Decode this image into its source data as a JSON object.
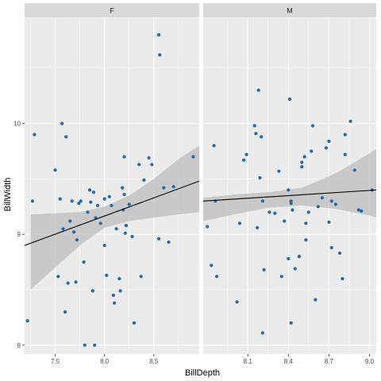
{
  "chart_data": {
    "type": "scatter",
    "facet_variable": "sex",
    "xlabel": "BillDepth",
    "ylabel": "BillWidth",
    "ylim": [
      7.92,
      10.95
    ],
    "y_ticks": [
      8,
      9,
      10
    ],
    "y_tick_labels": [
      "8",
      "9",
      "10"
    ],
    "smooth": "linear fit with confidence band",
    "colors": {
      "point": "#1f6bb0",
      "fit_line": "#000000",
      "band": "#bdbdbd",
      "panel": "#ebebeb",
      "strip": "#d9d9d9",
      "grid": "#ffffff"
    },
    "panels": [
      {
        "label": "F",
        "xlim": [
          7.19,
          8.96
        ],
        "x_ticks": [
          7.5,
          8.0,
          8.5
        ],
        "x_tick_labels": [
          "7.5",
          "8.0",
          "8.5"
        ],
        "fit": {
          "x0": 7.19,
          "y0": 8.9,
          "x1": 8.96,
          "y1": 9.48
        },
        "band": {
          "x": [
            7.25,
            7.5,
            7.75,
            8.0,
            8.25,
            8.5,
            8.75,
            8.96
          ],
          "upper": [
            9.18,
            9.19,
            9.2,
            9.25,
            9.35,
            9.5,
            9.68,
            9.8
          ],
          "lower": [
            8.5,
            8.7,
            8.9,
            9.06,
            9.12,
            9.15,
            9.18,
            9.2
          ]
        },
        "points": [
          [
            7.22,
            8.22
          ],
          [
            7.27,
            9.3
          ],
          [
            7.29,
            9.9
          ],
          [
            7.5,
            9.58
          ],
          [
            7.53,
            8.62
          ],
          [
            7.55,
            9.32
          ],
          [
            7.57,
            10.0
          ],
          [
            7.58,
            9.05
          ],
          [
            7.6,
            8.3
          ],
          [
            7.61,
            9.88
          ],
          [
            7.63,
            8.56
          ],
          [
            7.65,
            9.12
          ],
          [
            7.67,
            9.3
          ],
          [
            7.69,
            9.02
          ],
          [
            7.71,
            8.57
          ],
          [
            7.72,
            8.95
          ],
          [
            7.74,
            9.28
          ],
          [
            7.76,
            9.3
          ],
          [
            7.79,
            8.75
          ],
          [
            7.8,
            8.0
          ],
          [
            7.83,
            9.2
          ],
          [
            7.85,
            9.4
          ],
          [
            7.86,
            9.29
          ],
          [
            7.88,
            8.49
          ],
          [
            7.89,
            9.38
          ],
          [
            7.9,
            8.0
          ],
          [
            7.91,
            9.15
          ],
          [
            7.93,
            9.26
          ],
          [
            7.96,
            9.1
          ],
          [
            8.0,
            9.32
          ],
          [
            8.0,
            8.9
          ],
          [
            8.02,
            8.63
          ],
          [
            8.05,
            9.34
          ],
          [
            8.07,
            9.26
          ],
          [
            8.09,
            8.45
          ],
          [
            8.1,
            8.38
          ],
          [
            8.12,
            9.05
          ],
          [
            8.15,
            8.6
          ],
          [
            8.16,
            8.49
          ],
          [
            8.18,
            9.42
          ],
          [
            8.19,
            9.22
          ],
          [
            8.2,
            9.36
          ],
          [
            8.21,
            9.01
          ],
          [
            8.22,
            9.08
          ],
          [
            8.2,
            9.7
          ],
          [
            8.25,
            9.27
          ],
          [
            8.28,
            8.98
          ],
          [
            8.3,
            8.2
          ],
          [
            8.35,
            9.63
          ],
          [
            8.37,
            8.62
          ],
          [
            8.4,
            9.49
          ],
          [
            8.45,
            9.69
          ],
          [
            8.48,
            9.63
          ],
          [
            8.55,
            10.8
          ],
          [
            8.56,
            10.62
          ],
          [
            8.55,
            8.96
          ],
          [
            8.6,
            9.42
          ],
          [
            8.65,
            8.93
          ],
          [
            8.7,
            9.43
          ],
          [
            8.9,
            9.7
          ]
        ]
      },
      {
        "label": "M",
        "xlim": [
          7.77,
          9.05
        ],
        "x_ticks": [
          8.1,
          8.4,
          8.7,
          9.0
        ],
        "x_tick_labels": [
          "8.1",
          "8.4",
          "8.7",
          "9.0"
        ],
        "fit": {
          "x0": 7.77,
          "y0": 9.3,
          "x1": 9.05,
          "y1": 9.4
        },
        "band": {
          "x": [
            7.77,
            8.0,
            8.25,
            8.5,
            8.75,
            9.0,
            9.05
          ],
          "upper": [
            9.33,
            9.36,
            9.38,
            9.42,
            9.55,
            9.73,
            9.77
          ],
          "lower": [
            9.12,
            9.18,
            9.24,
            9.26,
            9.23,
            9.17,
            9.15
          ]
        },
        "points": [
          [
            7.8,
            9.07
          ],
          [
            7.83,
            8.72
          ],
          [
            7.85,
            9.8
          ],
          [
            7.86,
            9.3
          ],
          [
            7.87,
            8.62
          ],
          [
            8.02,
            8.39
          ],
          [
            8.04,
            9.1
          ],
          [
            8.07,
            9.67
          ],
          [
            8.09,
            9.72
          ],
          [
            8.15,
            9.98
          ],
          [
            8.16,
            9.91
          ],
          [
            8.18,
            10.3
          ],
          [
            8.2,
            9.88
          ],
          [
            8.19,
            9.51
          ],
          [
            8.21,
            9.3
          ],
          [
            8.17,
            9.06
          ],
          [
            8.22,
            8.68
          ],
          [
            8.21,
            8.11
          ],
          [
            8.26,
            9.2
          ],
          [
            8.3,
            9.19
          ],
          [
            8.33,
            9.57
          ],
          [
            8.35,
            8.62
          ],
          [
            8.37,
            9.12
          ],
          [
            8.4,
            8.78
          ],
          [
            8.4,
            9.4
          ],
          [
            8.41,
            10.22
          ],
          [
            8.42,
            9.28
          ],
          [
            8.42,
            9.3
          ],
          [
            8.43,
            9.22
          ],
          [
            8.42,
            8.2
          ],
          [
            8.45,
            8.69
          ],
          [
            8.48,
            8.8
          ],
          [
            8.5,
            9.61
          ],
          [
            8.5,
            9.65
          ],
          [
            8.52,
            9.7
          ],
          [
            8.53,
            9.1
          ],
          [
            8.53,
            8.95
          ],
          [
            8.55,
            9.2
          ],
          [
            8.57,
            9.75
          ],
          [
            8.58,
            9.98
          ],
          [
            8.6,
            8.41
          ],
          [
            8.62,
            9.25
          ],
          [
            8.65,
            9.33
          ],
          [
            8.68,
            9.78
          ],
          [
            8.7,
            9.84
          ],
          [
            8.72,
            9.3
          ],
          [
            8.7,
            9.11
          ],
          [
            8.72,
            8.88
          ],
          [
            8.75,
            9.27
          ],
          [
            8.78,
            8.83
          ],
          [
            8.82,
            9.72
          ],
          [
            8.82,
            9.9
          ],
          [
            8.8,
            8.6
          ],
          [
            8.86,
            10.02
          ],
          [
            8.89,
            9.58
          ],
          [
            8.92,
            9.22
          ],
          [
            8.94,
            9.21
          ],
          [
            9.02,
            9.4
          ]
        ]
      }
    ]
  }
}
